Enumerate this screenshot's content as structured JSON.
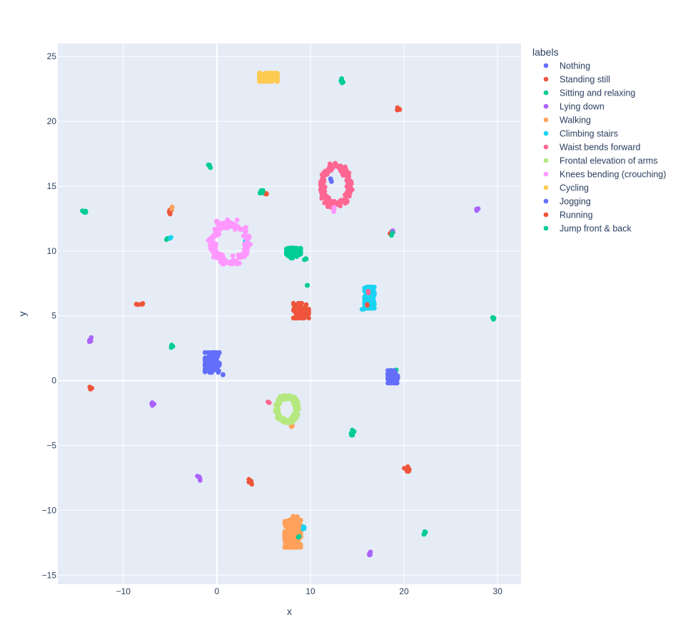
{
  "chart_data": {
    "type": "scatter",
    "xlabel": "x",
    "ylabel": "y",
    "xlim": [
      -17,
      32.5
    ],
    "ylim": [
      -15.7,
      26
    ],
    "x_ticks": [
      -10,
      0,
      10,
      20,
      30
    ],
    "y_ticks": [
      -15,
      -10,
      -5,
      0,
      5,
      10,
      15,
      20,
      25
    ],
    "tick_label_format": {
      "negative_sign": "−"
    },
    "grid": true,
    "zero_lines": true,
    "background": "#E5ECF6",
    "legend": {
      "title": "labels",
      "position": "right"
    },
    "series": [
      {
        "name": "Nothing",
        "color": "#636EFA",
        "clusters": [
          {
            "cx": 12.2,
            "cy": 15.4,
            "rx": 0.2,
            "ry": 0.2,
            "n": 4
          }
        ]
      },
      {
        "name": "Standing still",
        "color": "#EF553B",
        "clusters": [
          {
            "cx": -4.9,
            "cy": 13.1,
            "rx": 0.2,
            "ry": 0.3,
            "n": 5
          },
          {
            "cx": 5.2,
            "cy": 14.4,
            "rx": 0.2,
            "ry": 0.1,
            "n": 3
          },
          {
            "cx": 18.5,
            "cy": 11.4,
            "rx": 0.2,
            "ry": 0.1,
            "n": 3
          },
          {
            "cx": -0.4,
            "cy": 2.0,
            "rx": 0.3,
            "ry": 0.2,
            "n": 5
          },
          {
            "cx": 7.5,
            "cy": -11.0,
            "rx": 0.2,
            "ry": 0.2,
            "n": 3
          }
        ]
      },
      {
        "name": "Sitting and relaxing",
        "color": "#00CC96",
        "clusters": [
          {
            "cx": 8.2,
            "cy": 9.9,
            "rx": 0.8,
            "ry": 0.35,
            "n": 60
          },
          {
            "cx": 9.4,
            "cy": 9.4,
            "rx": 0.2,
            "ry": 0.1,
            "n": 4
          },
          {
            "cx": 7.9,
            "cy": 9.4,
            "rx": 0.2,
            "ry": 0.1,
            "n": 3
          },
          {
            "cx": 9.7,
            "cy": 7.3,
            "rx": 0.1,
            "ry": 0.1,
            "n": 2
          },
          {
            "cx": 13.4,
            "cy": 23.1,
            "rx": 0.15,
            "ry": 0.2,
            "n": 6
          },
          {
            "cx": -0.8,
            "cy": 16.5,
            "rx": 0.15,
            "ry": 0.15,
            "n": 5
          },
          {
            "cx": 4.8,
            "cy": 14.6,
            "rx": 0.2,
            "ry": 0.15,
            "n": 6
          },
          {
            "cx": -14.2,
            "cy": 13.0,
            "rx": 0.2,
            "ry": 0.15,
            "n": 5
          },
          {
            "cx": -5.2,
            "cy": 11.0,
            "rx": 0.2,
            "ry": 0.15,
            "n": 4
          },
          {
            "cx": 12.1,
            "cy": 13.5,
            "rx": 0.2,
            "ry": 0.2,
            "n": 4
          },
          {
            "cx": 18.9,
            "cy": 0.7,
            "rx": 0.3,
            "ry": 0.15,
            "n": 6
          },
          {
            "cx": -4.9,
            "cy": 2.7,
            "rx": 0.3,
            "ry": 0.15,
            "n": 6
          },
          {
            "cx": 29.5,
            "cy": 4.8,
            "rx": 0.15,
            "ry": 0.1,
            "n": 4
          },
          {
            "cx": 14.5,
            "cy": -4.0,
            "rx": 0.25,
            "ry": 0.3,
            "n": 7
          },
          {
            "cx": 22.2,
            "cy": -11.7,
            "rx": 0.15,
            "ry": 0.2,
            "n": 5
          },
          {
            "cx": 8.6,
            "cy": -12.4,
            "rx": 0.2,
            "ry": 0.15,
            "n": 3
          },
          {
            "cx": 16.0,
            "cy": 6.0,
            "rx": 0.1,
            "ry": 0.2,
            "n": 3
          }
        ]
      },
      {
        "name": "Lying down",
        "color": "#AB63FA",
        "clusters": [
          {
            "cx": 27.9,
            "cy": 13.2,
            "rx": 0.15,
            "ry": 0.15,
            "n": 5
          },
          {
            "cx": 18.8,
            "cy": 11.6,
            "rx": 0.1,
            "ry": 0.2,
            "n": 3
          },
          {
            "cx": -13.6,
            "cy": 3.1,
            "rx": 0.2,
            "ry": 0.25,
            "n": 6
          },
          {
            "cx": -6.9,
            "cy": -1.8,
            "rx": 0.2,
            "ry": 0.2,
            "n": 5
          },
          {
            "cx": -1.9,
            "cy": -7.5,
            "rx": 0.2,
            "ry": 0.2,
            "n": 5
          },
          {
            "cx": 16.4,
            "cy": -13.3,
            "rx": 0.15,
            "ry": 0.15,
            "n": 5
          }
        ]
      },
      {
        "name": "Walking",
        "color": "#FFA15A",
        "clusters": [
          {
            "cx": 8.1,
            "cy": -11.8,
            "rx": 0.9,
            "ry": 1.1,
            "n": 220
          },
          {
            "cx": 8.3,
            "cy": -10.9,
            "rx": 0.35,
            "ry": 0.45,
            "n": 30
          },
          {
            "cx": -4.8,
            "cy": 13.3,
            "rx": 0.1,
            "ry": 0.1,
            "n": 2
          },
          {
            "cx": 8.0,
            "cy": -3.6,
            "rx": 0.15,
            "ry": 0.15,
            "n": 3
          }
        ]
      },
      {
        "name": "Climbing stairs",
        "color": "#19D3F3",
        "clusters": [
          {
            "cx": 16.3,
            "cy": 6.4,
            "rx": 0.55,
            "ry": 0.85,
            "n": 150
          },
          {
            "cx": 15.7,
            "cy": 5.5,
            "rx": 0.2,
            "ry": 0.1,
            "n": 3
          },
          {
            "cx": 3.1,
            "cy": 10.7,
            "rx": 0.2,
            "ry": 0.1,
            "n": 4
          },
          {
            "cx": 9.4,
            "cy": -11.4,
            "rx": 0.2,
            "ry": 0.2,
            "n": 4
          },
          {
            "cx": -5.0,
            "cy": 11.0,
            "rx": 0.1,
            "ry": 0.1,
            "n": 2
          }
        ]
      },
      {
        "name": "Waist bends forward",
        "color": "#FF6692",
        "clusters": [
          {
            "cx": 12.7,
            "cy": 15.0,
            "rx": 1.6,
            "ry": 1.6,
            "n": 180,
            "ring": true
          },
          {
            "cx": 5.5,
            "cy": -1.7,
            "rx": 0.1,
            "ry": 0.1,
            "n": 2
          },
          {
            "cx": 16.2,
            "cy": 6.8,
            "rx": 0.1,
            "ry": 0.1,
            "n": 2
          }
        ]
      },
      {
        "name": "Frontal elevation of arms",
        "color": "#B6E880",
        "clusters": [
          {
            "cx": 7.5,
            "cy": -2.2,
            "rx": 1.2,
            "ry": 1.05,
            "n": 180,
            "ring": true
          }
        ]
      },
      {
        "name": "Knees bending (crouching)",
        "color": "#FF97FF",
        "clusters": [
          {
            "cx": 1.4,
            "cy": 10.6,
            "rx": 2.0,
            "ry": 1.6,
            "n": 170,
            "ring": true
          },
          {
            "cx": 0.1,
            "cy": 12.3,
            "rx": 0.2,
            "ry": 0.2,
            "n": 6
          },
          {
            "cx": 12.5,
            "cy": 13.2,
            "rx": 0.15,
            "ry": 0.2,
            "n": 5
          }
        ]
      },
      {
        "name": "Cycling",
        "color": "#FECB52",
        "clusters": [
          {
            "cx": 5.5,
            "cy": 23.4,
            "rx": 1.0,
            "ry": 0.35,
            "n": 140
          }
        ]
      },
      {
        "name": "Jogging",
        "color": "#636EFA",
        "clusters": [
          {
            "cx": -0.5,
            "cy": 1.4,
            "rx": 0.8,
            "ry": 0.8,
            "n": 100
          },
          {
            "cx": 0.6,
            "cy": 0.5,
            "rx": 0.1,
            "ry": 0.1,
            "n": 2
          },
          {
            "cx": 18.8,
            "cy": 0.3,
            "rx": 0.55,
            "ry": 0.5,
            "n": 110
          }
        ]
      },
      {
        "name": "Running",
        "color": "#EF553B",
        "clusters": [
          {
            "cx": 9.0,
            "cy": 5.4,
            "rx": 0.85,
            "ry": 0.6,
            "n": 90
          },
          {
            "cx": 19.4,
            "cy": 21.0,
            "rx": 0.15,
            "ry": 0.2,
            "n": 6
          },
          {
            "cx": -8.3,
            "cy": 5.9,
            "rx": 0.4,
            "ry": 0.1,
            "n": 6
          },
          {
            "cx": -13.5,
            "cy": -0.6,
            "rx": 0.15,
            "ry": 0.15,
            "n": 5
          },
          {
            "cx": 3.5,
            "cy": -7.8,
            "rx": 0.25,
            "ry": 0.2,
            "n": 6
          },
          {
            "cx": 20.5,
            "cy": -6.8,
            "rx": 0.5,
            "ry": 0.2,
            "n": 8
          },
          {
            "cx": 16.1,
            "cy": 5.9,
            "rx": 0.1,
            "ry": 0.1,
            "n": 2
          }
        ]
      },
      {
        "name": "Jump front & back",
        "color": "#00CC96",
        "clusters": [
          {
            "cx": 18.7,
            "cy": 11.3,
            "rx": 0.1,
            "ry": 0.1,
            "n": 2
          },
          {
            "cx": 8.7,
            "cy": -12.0,
            "rx": 0.1,
            "ry": 0.1,
            "n": 2
          }
        ]
      }
    ]
  }
}
